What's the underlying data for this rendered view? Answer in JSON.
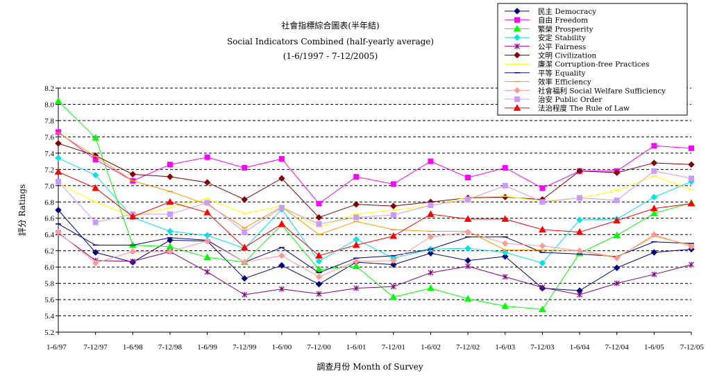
{
  "chart_data": {
    "type": "line",
    "title_lines": [
      "社會指標綜合圖表(半年結)",
      "Social Indicators Combined (half-yearly average)",
      "(1-6/1997 - 7-12/2005)"
    ],
    "xlabel": "調查月份 Month of Survey",
    "ylabel": "評分 Ratings",
    "ylim": [
      5.2,
      8.2
    ],
    "yticks": [
      "5.2",
      "5.4",
      "5.6",
      "5.8",
      "6.0",
      "6.2",
      "6.4",
      "6.6",
      "6.8",
      "7.0",
      "7.2",
      "7.4",
      "7.6",
      "7.8",
      "8.0",
      "8.2"
    ],
    "grid": "horizontal dashed",
    "legend_position": "top-right",
    "categories": [
      "1-6/97",
      "7-12/97",
      "1-6/98",
      "7-12/98",
      "1-6/99",
      "7-12/99",
      "1-6/00",
      "7-12/00",
      "1-6/01",
      "7-12/01",
      "1-6/02",
      "7-12/02",
      "1-6/03",
      "7-12/03",
      "1-6/04",
      "7-12/04",
      "1-6/05",
      "7-12/05"
    ],
    "series": [
      {
        "name": "民主 Democracy",
        "color": "#000080",
        "marker": "diamond",
        "values": [
          6.7,
          6.18,
          6.06,
          6.33,
          6.32,
          5.86,
          6.02,
          5.79,
          6.06,
          6.03,
          6.17,
          6.08,
          6.13,
          5.74,
          5.71,
          5.99,
          6.18,
          6.22
        ]
      },
      {
        "name": "自由 Freedom",
        "color": "#ff00ff",
        "marker": "square",
        "values": [
          7.66,
          7.32,
          7.06,
          7.26,
          7.35,
          7.22,
          7.33,
          6.78,
          7.11,
          7.02,
          7.3,
          7.1,
          7.22,
          6.97,
          7.18,
          7.18,
          7.49,
          7.46
        ]
      },
      {
        "name": "繁榮 Prosperity",
        "color": "#00ff00",
        "marker": "triangle",
        "values": [
          8.04,
          7.59,
          6.27,
          6.25,
          6.12,
          6.06,
          6.52,
          5.97,
          6.01,
          5.63,
          5.74,
          5.61,
          5.52,
          5.48,
          6.17,
          6.39,
          6.66,
          6.79
        ]
      },
      {
        "name": "安定 Stability",
        "color": "#00e5e5",
        "marker": "diamond",
        "values": [
          7.34,
          7.13,
          6.61,
          6.44,
          6.39,
          6.23,
          6.71,
          6.07,
          6.34,
          6.11,
          6.22,
          6.23,
          6.18,
          6.05,
          6.58,
          6.59,
          6.86,
          7.05
        ]
      },
      {
        "name": "公平 Fairness",
        "color": "#800080",
        "marker": "star",
        "values": [
          6.42,
          6.08,
          6.07,
          6.19,
          5.94,
          5.66,
          5.73,
          5.67,
          5.74,
          5.76,
          5.93,
          6.01,
          5.88,
          5.75,
          5.66,
          5.8,
          5.91,
          6.03
        ]
      },
      {
        "name": "文明 Civilization",
        "color": "#800000",
        "marker": "diamond",
        "values": [
          7.52,
          7.37,
          7.14,
          7.11,
          7.04,
          6.83,
          7.09,
          6.61,
          6.77,
          6.75,
          6.8,
          6.85,
          6.86,
          6.83,
          7.18,
          7.16,
          7.28,
          7.26
        ]
      },
      {
        "name": "廉潔 Corruption-free Practices",
        "color": "#ffff00",
        "marker": "line",
        "values": [
          7.03,
          6.8,
          6.62,
          6.73,
          6.84,
          6.66,
          6.75,
          6.49,
          6.65,
          6.7,
          6.75,
          6.86,
          6.87,
          6.81,
          6.85,
          6.94,
          7.12,
          6.95
        ]
      },
      {
        "name": "平等 Equality",
        "color": "#000080",
        "marker": "line",
        "values": [
          6.53,
          6.27,
          6.27,
          6.36,
          6.33,
          6.06,
          6.24,
          5.93,
          6.11,
          6.14,
          6.22,
          6.37,
          6.37,
          6.18,
          6.16,
          6.13,
          6.31,
          6.29
        ]
      },
      {
        "name": "效率 Efficiency",
        "color": "#ff9900",
        "marker": "line",
        "values": [
          7.65,
          7.36,
          7.06,
          6.93,
          6.77,
          6.48,
          6.74,
          6.4,
          6.56,
          6.46,
          6.44,
          6.44,
          6.21,
          6.21,
          6.2,
          6.12,
          6.38,
          6.27
        ]
      },
      {
        "name": "社會福利 Social Welfare Sufficiency",
        "color": "#ff9999",
        "marker": "diamond",
        "values": [
          6.43,
          6.05,
          6.19,
          6.19,
          6.32,
          6.06,
          6.14,
          5.88,
          6.07,
          6.08,
          6.37,
          6.43,
          6.29,
          6.26,
          6.2,
          6.11,
          6.4,
          6.25
        ]
      },
      {
        "name": "治安 Public Order",
        "color": "#cc99ff",
        "marker": "square",
        "values": [
          7.05,
          6.55,
          6.65,
          6.65,
          6.79,
          6.43,
          6.73,
          6.53,
          6.61,
          6.64,
          6.76,
          6.83,
          7.0,
          6.8,
          6.85,
          6.82,
          7.18,
          7.09
        ]
      },
      {
        "name": "法治程度 The Rule of Law",
        "color": "#ff0000",
        "marker": "triangle",
        "values": [
          7.17,
          6.97,
          6.62,
          6.8,
          6.67,
          6.24,
          6.53,
          6.14,
          6.27,
          6.38,
          6.65,
          6.59,
          6.59,
          6.46,
          6.43,
          6.57,
          6.72,
          6.78
        ]
      }
    ]
  }
}
